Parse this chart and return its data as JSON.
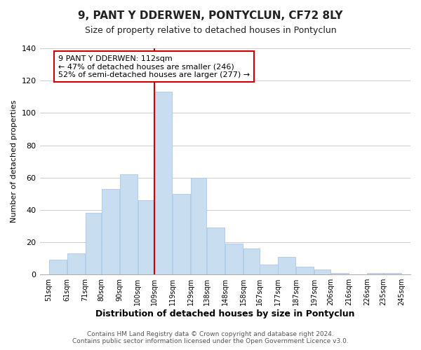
{
  "title": "9, PANT Y DDERWEN, PONTYCLUN, CF72 8LY",
  "subtitle": "Size of property relative to detached houses in Pontyclun",
  "xlabel": "Distribution of detached houses by size in Pontyclun",
  "ylabel": "Number of detached properties",
  "bar_left_edges": [
    51,
    61,
    71,
    80,
    90,
    100,
    109,
    119,
    129,
    138,
    148,
    158,
    167,
    177,
    187,
    197,
    206,
    216,
    226,
    235
  ],
  "bar_widths": [
    10,
    10,
    9,
    10,
    10,
    9,
    10,
    10,
    9,
    10,
    10,
    9,
    10,
    10,
    10,
    9,
    10,
    10,
    9,
    10
  ],
  "bar_heights": [
    9,
    13,
    38,
    53,
    62,
    46,
    113,
    50,
    60,
    29,
    19,
    16,
    6,
    11,
    5,
    3,
    1,
    0,
    1,
    1
  ],
  "bar_color": "#c9ddf0",
  "bar_edgecolor": "#a8c8e8",
  "grid_color": "#cccccc",
  "ylim": [
    0,
    140
  ],
  "yticks": [
    0,
    20,
    40,
    60,
    80,
    100,
    120,
    140
  ],
  "x_tick_labels": [
    "51sqm",
    "61sqm",
    "71sqm",
    "80sqm",
    "90sqm",
    "100sqm",
    "109sqm",
    "119sqm",
    "129sqm",
    "138sqm",
    "148sqm",
    "158sqm",
    "167sqm",
    "177sqm",
    "187sqm",
    "197sqm",
    "206sqm",
    "216sqm",
    "226sqm",
    "235sqm",
    "245sqm"
  ],
  "x_tick_positions": [
    51,
    61,
    71,
    80,
    90,
    100,
    109,
    119,
    129,
    138,
    148,
    158,
    167,
    177,
    187,
    197,
    206,
    216,
    226,
    235,
    245
  ],
  "vline_x": 109,
  "vline_color": "#cc0000",
  "annotation_lines": [
    "9 PANT Y DDERWEN: 112sqm",
    "← 47% of detached houses are smaller (246)",
    "52% of semi-detached houses are larger (277) →"
  ],
  "annotation_box_edgecolor": "#cc0000",
  "annotation_box_facecolor": "#ffffff",
  "footer_line1": "Contains HM Land Registry data © Crown copyright and database right 2024.",
  "footer_line2": "Contains public sector information licensed under the Open Government Licence v3.0.",
  "background_color": "#ffffff",
  "title_fontsize": 11,
  "subtitle_fontsize": 9,
  "xlabel_fontsize": 9,
  "ylabel_fontsize": 8,
  "footer_fontsize": 6.5,
  "tick_label_fontsize": 7,
  "annotation_fontsize": 8
}
